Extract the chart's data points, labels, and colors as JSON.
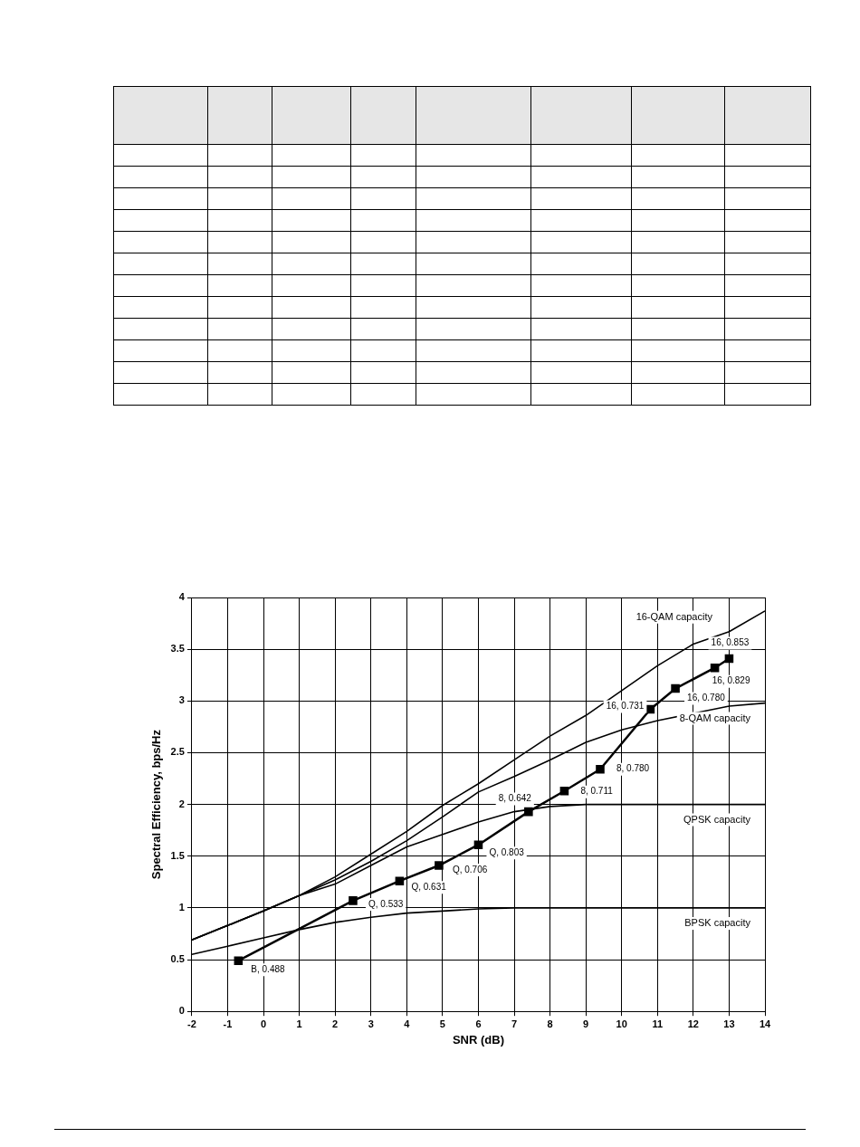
{
  "chart_data": {
    "type": "line",
    "xlabel": "SNR (dB)",
    "ylabel": "Spectral Efficiency, bps/Hz",
    "x": [
      -2,
      -1,
      0,
      1,
      2,
      3,
      4,
      5,
      6,
      7,
      8,
      9,
      10,
      11,
      12,
      13,
      14
    ],
    "xlim": [
      -2,
      14
    ],
    "xticks": [
      -2,
      -1,
      0,
      1,
      2,
      3,
      4,
      5,
      6,
      7,
      8,
      9,
      10,
      11,
      12,
      13,
      14
    ],
    "ylim": [
      0,
      4
    ],
    "yticks": [
      0,
      0.5,
      1,
      1.5,
      2,
      2.5,
      3,
      3.5,
      4
    ],
    "grid": true,
    "legend": false,
    "line_style": "solid",
    "series": [
      {
        "name": "16-QAM capacity",
        "color": "#000000",
        "marker": "none",
        "values": [
          0.69,
          0.83,
          0.97,
          1.12,
          1.3,
          1.52,
          1.74,
          1.99,
          2.2,
          2.43,
          2.66,
          2.86,
          3.1,
          3.34,
          3.55,
          3.67,
          3.87
        ]
      },
      {
        "name": "8-QAM capacity",
        "color": "#000000",
        "marker": "none",
        "values": [
          0.69,
          0.83,
          0.97,
          1.12,
          1.27,
          1.45,
          1.65,
          1.88,
          2.12,
          2.27,
          2.43,
          2.6,
          2.72,
          2.81,
          2.88,
          2.95,
          2.98
        ]
      },
      {
        "name": "QPSK capacity",
        "color": "#000000",
        "marker": "none",
        "values": [
          0.69,
          0.83,
          0.97,
          1.12,
          1.23,
          1.41,
          1.59,
          1.71,
          1.83,
          1.93,
          1.98,
          2,
          2,
          2,
          2,
          2,
          2
        ]
      },
      {
        "name": "BPSK capacity",
        "color": "#000000",
        "marker": "none",
        "values": [
          0.55,
          0.63,
          0.71,
          0.79,
          0.86,
          0.91,
          0.95,
          0.97,
          0.99,
          1,
          1,
          1,
          1,
          1,
          1,
          1,
          1
        ]
      },
      {
        "color": "#000000",
        "marker": "square",
        "x": [
          -0.7,
          2.5,
          3.8,
          4.9,
          6,
          7.4,
          8.4,
          9.4,
          10.8,
          11.5,
          12.6,
          13
        ],
        "values": [
          0.49,
          1.07,
          1.26,
          1.41,
          1.61,
          1.93,
          2.13,
          2.34,
          2.92,
          3.12,
          3.32,
          3.41
        ]
      }
    ],
    "annotations": [
      {
        "text": "B, 0.488",
        "x": -0.7,
        "y": 0.49
      },
      {
        "text": "Q, 0.533",
        "x": 2.5,
        "y": 1.07
      },
      {
        "text": "Q, 0.631",
        "x": 3.8,
        "y": 1.26
      },
      {
        "text": "Q, 0.706",
        "x": 4.9,
        "y": 1.41
      },
      {
        "text": "Q, 0.803",
        "x": 6,
        "y": 1.61
      },
      {
        "text": "8, 0.642",
        "x": 7.4,
        "y": 1.93
      },
      {
        "text": "8, 0.711",
        "x": 8.4,
        "y": 2.13
      },
      {
        "text": "8, 0.780",
        "x": 9.4,
        "y": 2.34
      },
      {
        "text": "16, 0.731",
        "x": 10.8,
        "y": 2.92
      },
      {
        "text": "16, 0.780",
        "x": 11.5,
        "y": 3.12
      },
      {
        "text": "16, 0.829",
        "x": 12.6,
        "y": 3.32
      },
      {
        "text": "16, 0.853",
        "x": 13,
        "y": 3.41
      }
    ]
  }
}
